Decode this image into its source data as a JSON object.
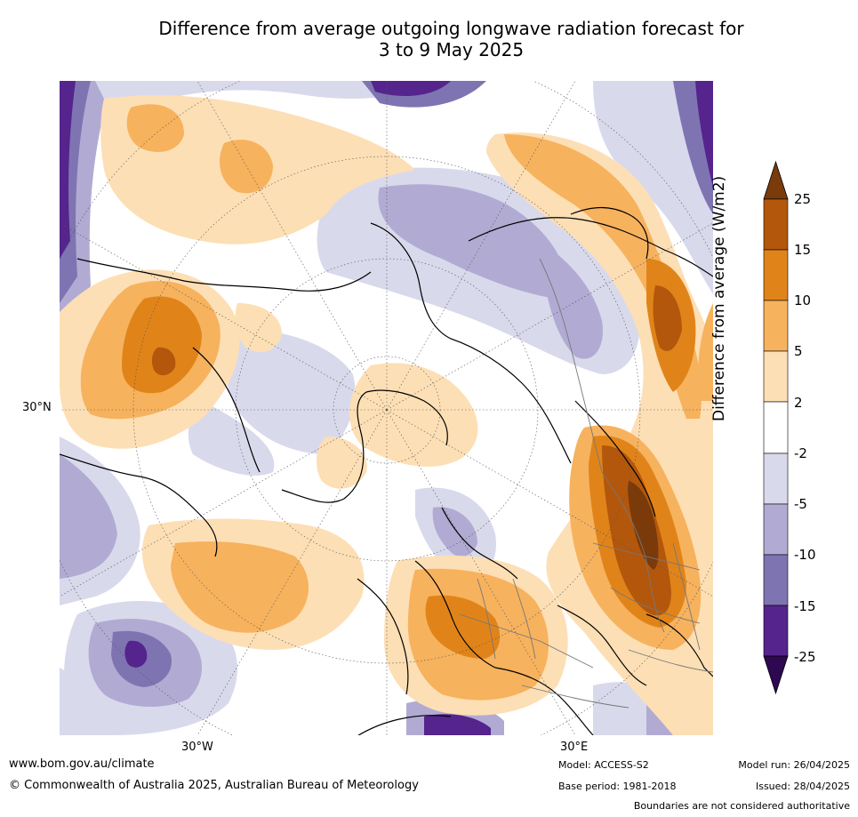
{
  "title": {
    "line1": "Difference from average outgoing longwave radiation forecast for",
    "line2": "3 to 9 May 2025"
  },
  "map": {
    "lat_label": "30°N",
    "lon_labels": [
      "30°W",
      "30°E"
    ]
  },
  "colorbar": {
    "title": "Difference from average (W/m2)",
    "ticks": [
      "25",
      "15",
      "10",
      "5",
      "2",
      "-2",
      "-5",
      "-10",
      "-15",
      "-25"
    ],
    "colors": {
      "above_25": "#7a3a0a",
      "15_25": "#b3570d",
      "10_15": "#e0841a",
      "5_10": "#f7b25e",
      "2_5": "#fddfb5",
      "neutral": "#ffffff",
      "m2_m5": "#d9d9ec",
      "m5_m10": "#b1abd3",
      "m10_m15": "#7f74b2",
      "m15_m25": "#55248d",
      "below_m25": "#2e0851"
    }
  },
  "footer": {
    "website": "www.bom.gov.au/climate",
    "copyright": "© Commonwealth of Australia 2025, Australian Bureau of Meteorology",
    "model": "Model: ACCESS-S2",
    "base_period": "Base period: 1981-2018",
    "model_run": "Model run: 26/04/2025",
    "issued": "Issued: 28/04/2025",
    "disclaimer": "Boundaries are not considered authoritative"
  }
}
